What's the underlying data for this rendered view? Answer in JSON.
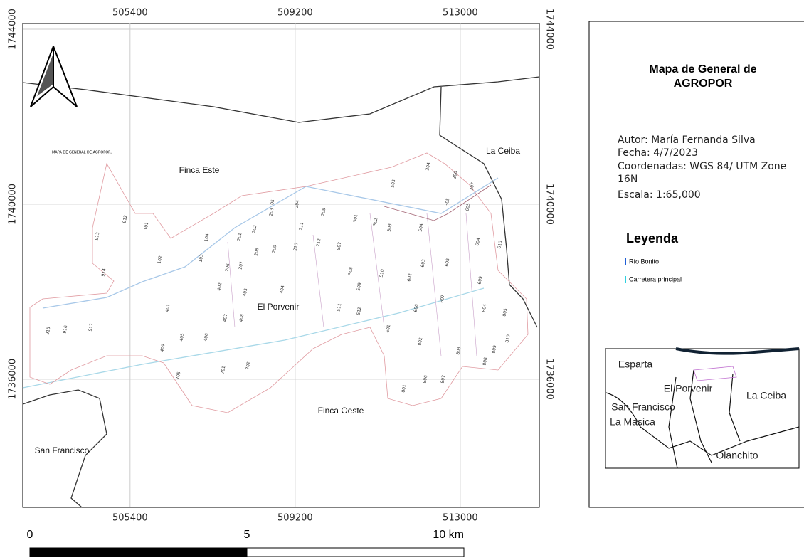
{
  "map": {
    "title": "Mapa de General de AGROPOR",
    "author": "Autor: María Fernanda Silva",
    "date": "Fecha: 4/7/2023",
    "coordinates": "Coordenadas:  WGS 84/ UTM Zone 16N",
    "scale": "Escala: 1:65,000",
    "small_title": "MAPA DE GENERAL DE AGROPOR.",
    "xlim": [
      502930,
      514820
    ],
    "ylim": [
      1733070,
      1744130
    ],
    "xticks": [
      505400,
      509200,
      513000
    ],
    "yticks": [
      1744000,
      1740000,
      1736000
    ],
    "grid": true,
    "places": [
      "Finca Este",
      "La Ceiba",
      "El Porvenir",
      "Finca Oeste",
      "San Francisco"
    ],
    "parcels": [
      "912",
      "913",
      "914",
      "915",
      "916",
      "917",
      "101",
      "102",
      "103",
      "104",
      "105",
      "201",
      "202",
      "203",
      "204",
      "205",
      "206",
      "207",
      "208",
      "209",
      "210",
      "211",
      "212",
      "301",
      "302",
      "303",
      "304",
      "305",
      "306",
      "307",
      "401",
      "402",
      "403",
      "404",
      "405",
      "406",
      "407",
      "408",
      "409",
      "503",
      "504",
      "507",
      "508",
      "509",
      "510",
      "511",
      "512",
      "601",
      "602",
      "603",
      "604",
      "605",
      "606",
      "607",
      "608",
      "609",
      "610",
      "701",
      "702",
      "705",
      "801",
      "802",
      "803",
      "804",
      "805",
      "806",
      "807",
      "808",
      "809",
      "810"
    ],
    "legend": {
      "title": "Leyenda",
      "items": [
        {
          "name": "Río Bonito",
          "color": "#1f5fd6"
        },
        {
          "name": "Carretera principal",
          "color": "#2fd0e0"
        }
      ]
    },
    "inset_labels": [
      "Esparta",
      "El Porvenir",
      "San Francisco",
      "La Masica",
      "La Ceiba",
      "Olanchito"
    ],
    "scale_bar": {
      "ticks": [
        0,
        5,
        {
          "value": 10,
          "label": "10 km"
        }
      ],
      "colors": [
        "#000000",
        "#ffffff"
      ]
    }
  }
}
